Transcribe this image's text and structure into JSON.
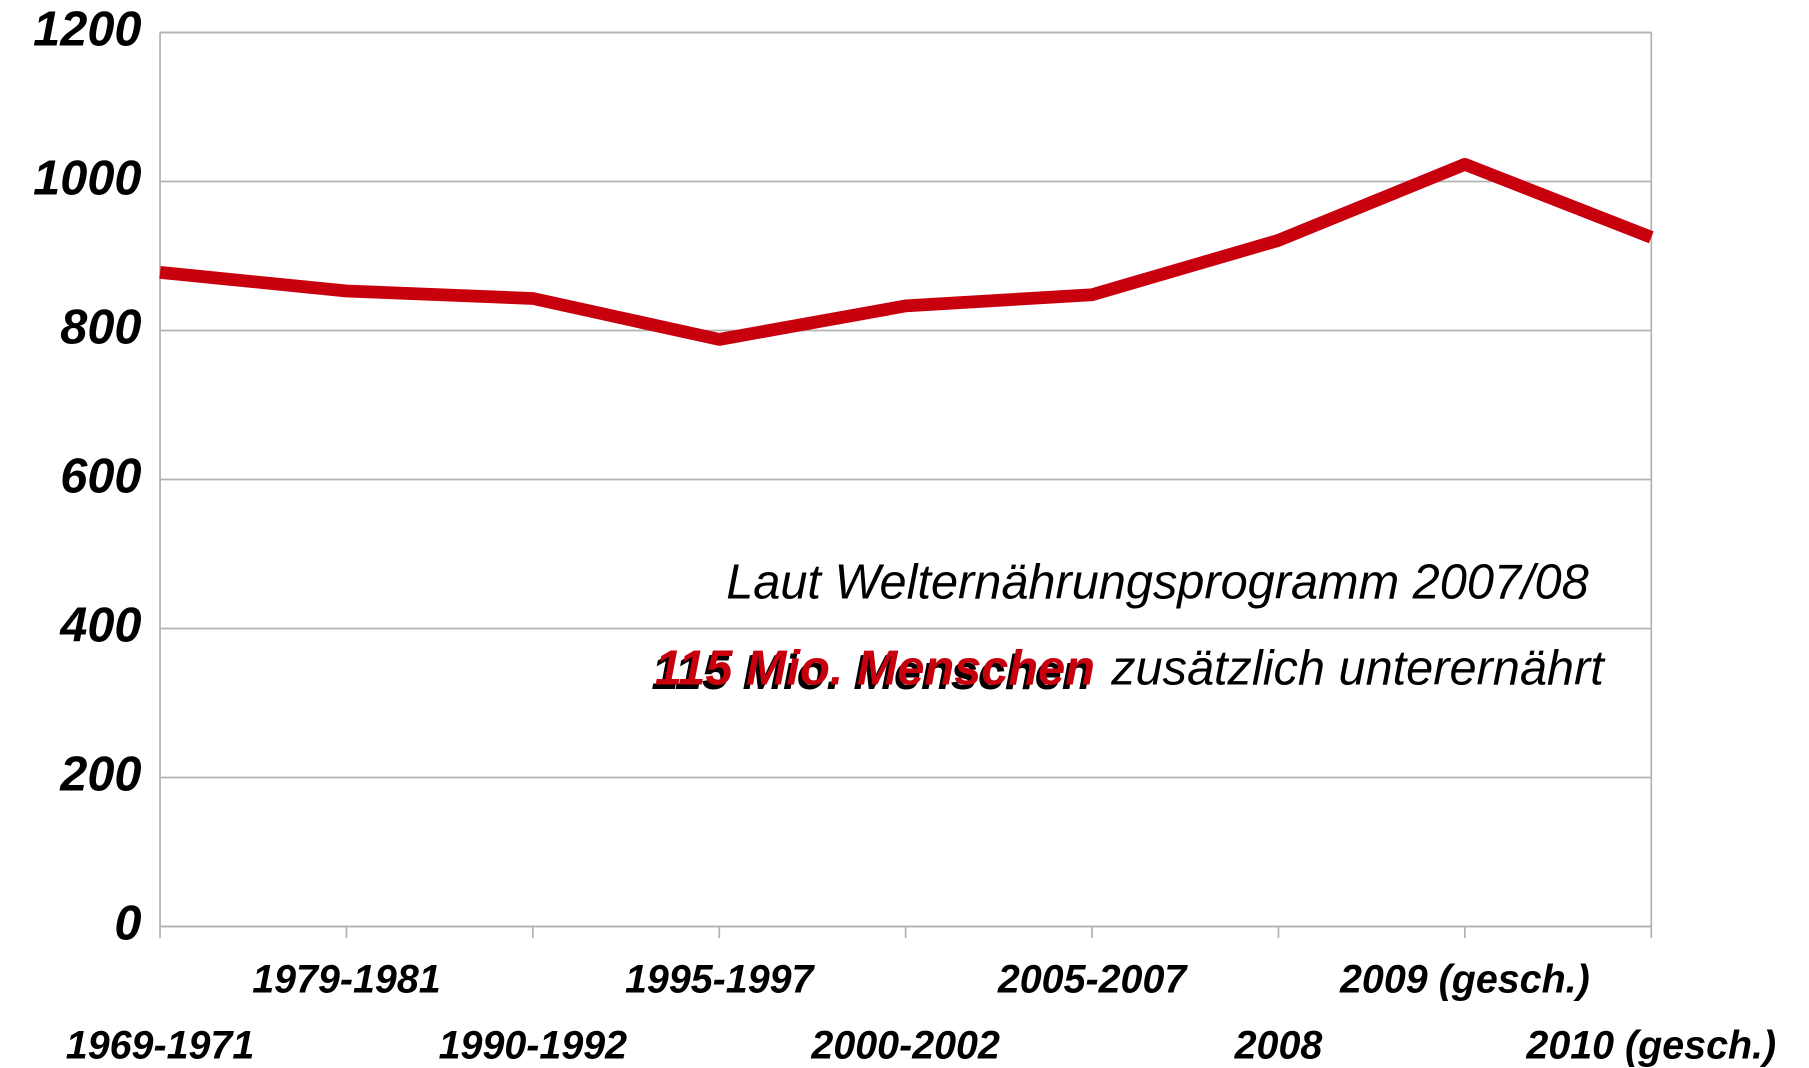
{
  "chart_data": {
    "type": "line",
    "categories": [
      "1969-1971",
      "1979-1981",
      "1990-1992",
      "1995-1997",
      "2000-2002",
      "2005-2007",
      "2008",
      "2009 (gesch.)",
      "2010 (gesch.)"
    ],
    "series": [
      {
        "color": "#c8000e",
        "values": [
          878,
          853,
          843,
          788,
          833,
          848,
          921,
          1023,
          925
        ]
      }
    ],
    "ylim": [
      0,
      1200
    ],
    "yticks": [
      0,
      200,
      400,
      600,
      800,
      1000,
      1200
    ],
    "grid": true,
    "annotation": {
      "line1": "Laut Welternährungsprogramm 2007/08",
      "highlight": "115 Mio. Menschen",
      "rest": "zusätzlich unterernährt",
      "highlight_color": "#c8000e"
    }
  }
}
